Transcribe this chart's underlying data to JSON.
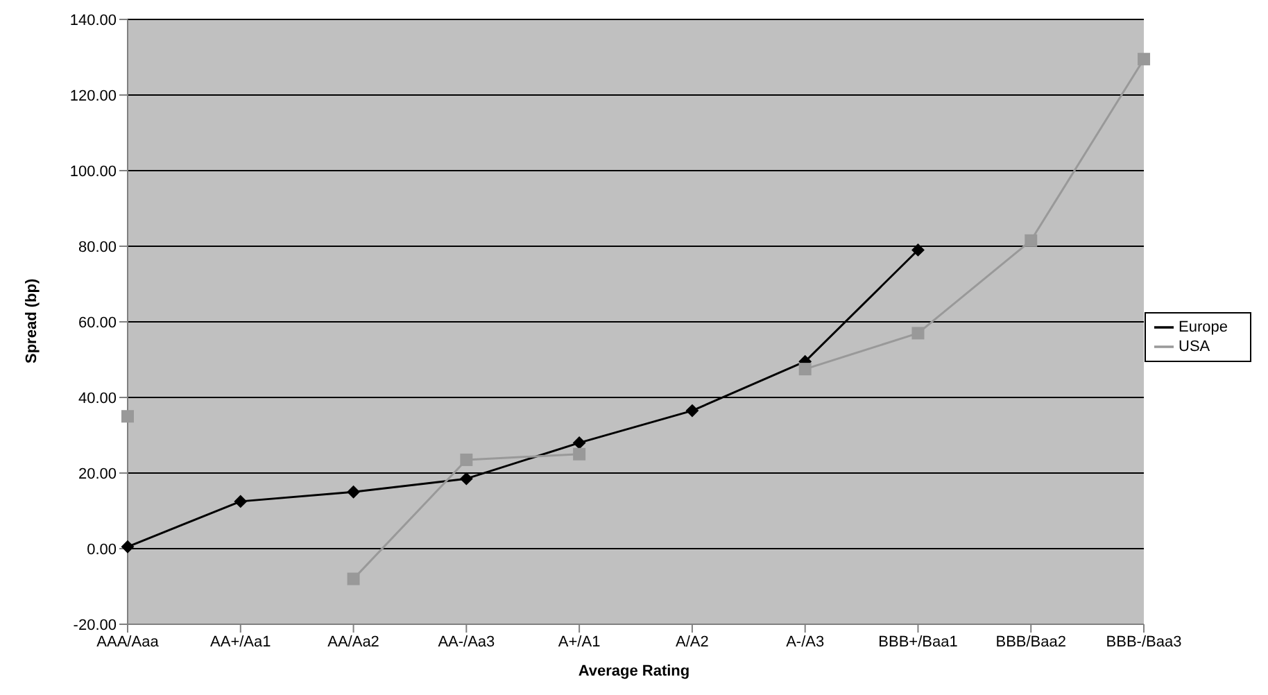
{
  "chart_data": {
    "type": "line",
    "xlabel": "Average Rating",
    "ylabel": "Spread (bp)",
    "categories": [
      "AAA/Aaa",
      "AA+/Aa1",
      "AA/Aa2",
      "AA-/Aa3",
      "A+/A1",
      "A/A2",
      "A-/A3",
      "BBB+/Baa1",
      "BBB/Baa2",
      "BBB-/Baa3"
    ],
    "series": [
      {
        "name": "Europe",
        "color": "#000000",
        "marker": "diamond",
        "values": [
          0.5,
          12.5,
          15,
          18.5,
          28,
          36.5,
          49.5,
          79,
          null,
          null
        ]
      },
      {
        "name": "USA",
        "color": "#999999",
        "marker": "square",
        "values": [
          35,
          null,
          -8,
          23.5,
          25,
          null,
          47.5,
          57,
          81.5,
          129.5
        ]
      }
    ],
    "ylim": [
      -20,
      140
    ],
    "yticks": [
      {
        "value": -20,
        "label": "-20.00"
      },
      {
        "value": 0,
        "label": "0.00"
      },
      {
        "value": 20,
        "label": "20.00"
      },
      {
        "value": 40,
        "label": "40.00"
      },
      {
        "value": 60,
        "label": "60.00"
      },
      {
        "value": 80,
        "label": "80.00"
      },
      {
        "value": 100,
        "label": "100.00"
      },
      {
        "value": 120,
        "label": "120.00"
      },
      {
        "value": 140,
        "label": "140.00"
      }
    ],
    "grid": "y",
    "legend": "right",
    "line_style": "solid"
  }
}
